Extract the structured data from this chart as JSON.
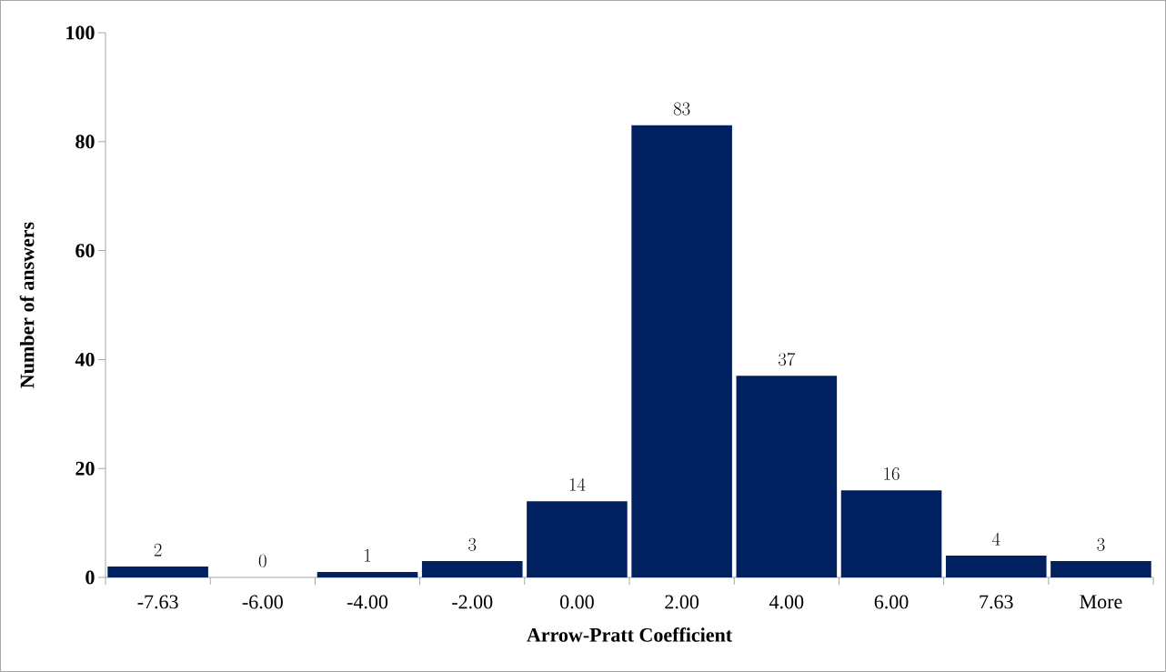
{
  "chart_data": {
    "type": "bar",
    "xlabel": "Arrow-Pratt Coefficient",
    "ylabel": "Number of answers",
    "categories": [
      "-7.63",
      "-6.00",
      "-4.00",
      "-2.00",
      "0.00",
      "2.00",
      "4.00",
      "6.00",
      "7.63",
      "More"
    ],
    "values": [
      2,
      0,
      1,
      3,
      14,
      83,
      37,
      16,
      4,
      3
    ],
    "color": "#002060",
    "ylim": [
      0,
      100
    ],
    "yticks": [
      0,
      20,
      40,
      60,
      80,
      100
    ],
    "data_labels": true
  }
}
